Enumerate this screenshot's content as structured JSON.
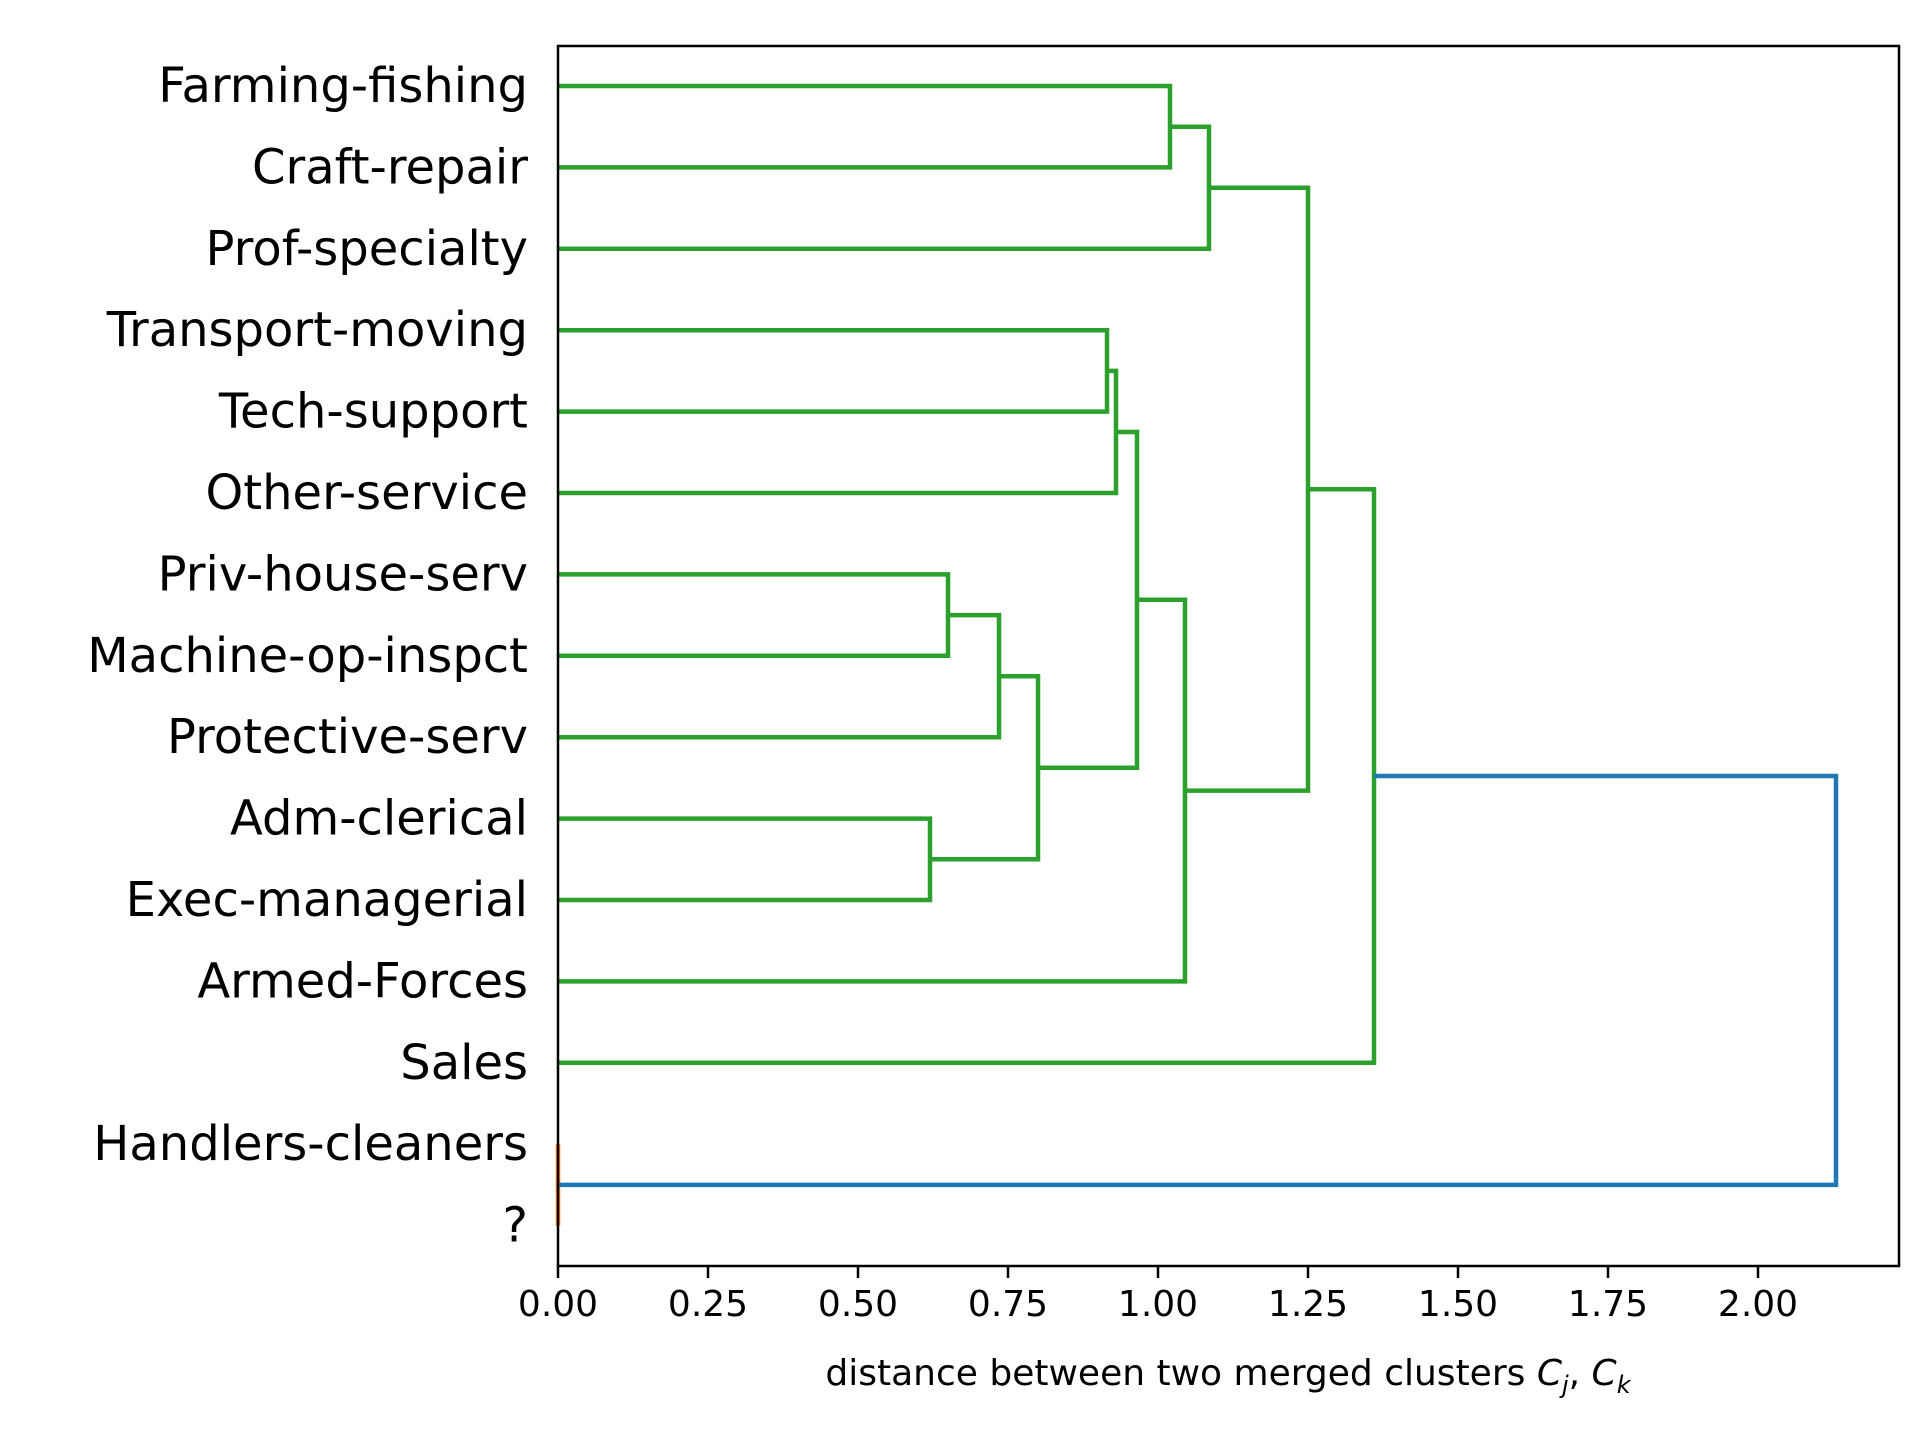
{
  "chart_data": {
    "type": "dendrogram",
    "orientation": "horizontal",
    "leaves": [
      "Farming-fishing",
      "Craft-repair",
      "Prof-specialty",
      "Transport-moving",
      "Tech-support",
      "Other-service",
      "Priv-house-serv",
      "Machine-op-inspct",
      "Protective-serv",
      "Adm-clerical",
      "Exec-managerial",
      "Armed-Forces",
      "Sales",
      "Handlers-cleaners",
      "?"
    ],
    "merges": [
      {
        "id": "m1",
        "left": "Adm-clerical",
        "right": "Exec-managerial",
        "distance": 0.62,
        "color": "#2ca02c"
      },
      {
        "id": "m2",
        "left": "Priv-house-serv",
        "right": "Machine-op-inspct",
        "distance": 0.65,
        "color": "#2ca02c"
      },
      {
        "id": "m3",
        "left": "m2",
        "right": "Protective-serv",
        "distance": 0.735,
        "color": "#2ca02c"
      },
      {
        "id": "m4",
        "left": "m3",
        "right": "m1",
        "distance": 0.8,
        "color": "#2ca02c"
      },
      {
        "id": "m5",
        "left": "Transport-moving",
        "right": "Tech-support",
        "distance": 0.915,
        "color": "#2ca02c"
      },
      {
        "id": "m6",
        "left": "m5",
        "right": "Other-service",
        "distance": 0.93,
        "color": "#2ca02c"
      },
      {
        "id": "m7",
        "left": "m6",
        "right": "m4",
        "distance": 0.965,
        "color": "#2ca02c"
      },
      {
        "id": "m8",
        "left": "Farming-fishing",
        "right": "Craft-repair",
        "distance": 1.02,
        "color": "#2ca02c"
      },
      {
        "id": "m9",
        "left": "m7",
        "right": "Armed-Forces",
        "distance": 1.045,
        "color": "#2ca02c"
      },
      {
        "id": "m10",
        "left": "m8",
        "right": "Prof-specialty",
        "distance": 1.085,
        "color": "#2ca02c"
      },
      {
        "id": "m11",
        "left": "m10",
        "right": "m9",
        "distance": 1.25,
        "color": "#2ca02c"
      },
      {
        "id": "m12",
        "left": "m11",
        "right": "Sales",
        "distance": 1.36,
        "color": "#2ca02c"
      },
      {
        "id": "m13",
        "left": "Handlers-cleaners",
        "right": "?",
        "distance": 0.0,
        "color": "#ff7f0e"
      },
      {
        "id": "m14",
        "left": "m12",
        "right": "m13",
        "distance": 2.13,
        "color": "#1f77b4"
      }
    ],
    "xticks": [
      "0.00",
      "0.25",
      "0.50",
      "0.75",
      "1.00",
      "1.25",
      "1.50",
      "1.75",
      "2.00"
    ],
    "xtick_values": [
      0,
      0.25,
      0.5,
      0.75,
      1.0,
      1.25,
      1.5,
      1.75,
      2.0
    ],
    "xlim": [
      0,
      2.235
    ],
    "xlabel_text": "distance between two merged clusters ",
    "xlabel_var1": "C",
    "xlabel_sub1": "j",
    "xlabel_sep": ", ",
    "xlabel_var2": "C",
    "xlabel_sub2": "k",
    "grid": false
  }
}
